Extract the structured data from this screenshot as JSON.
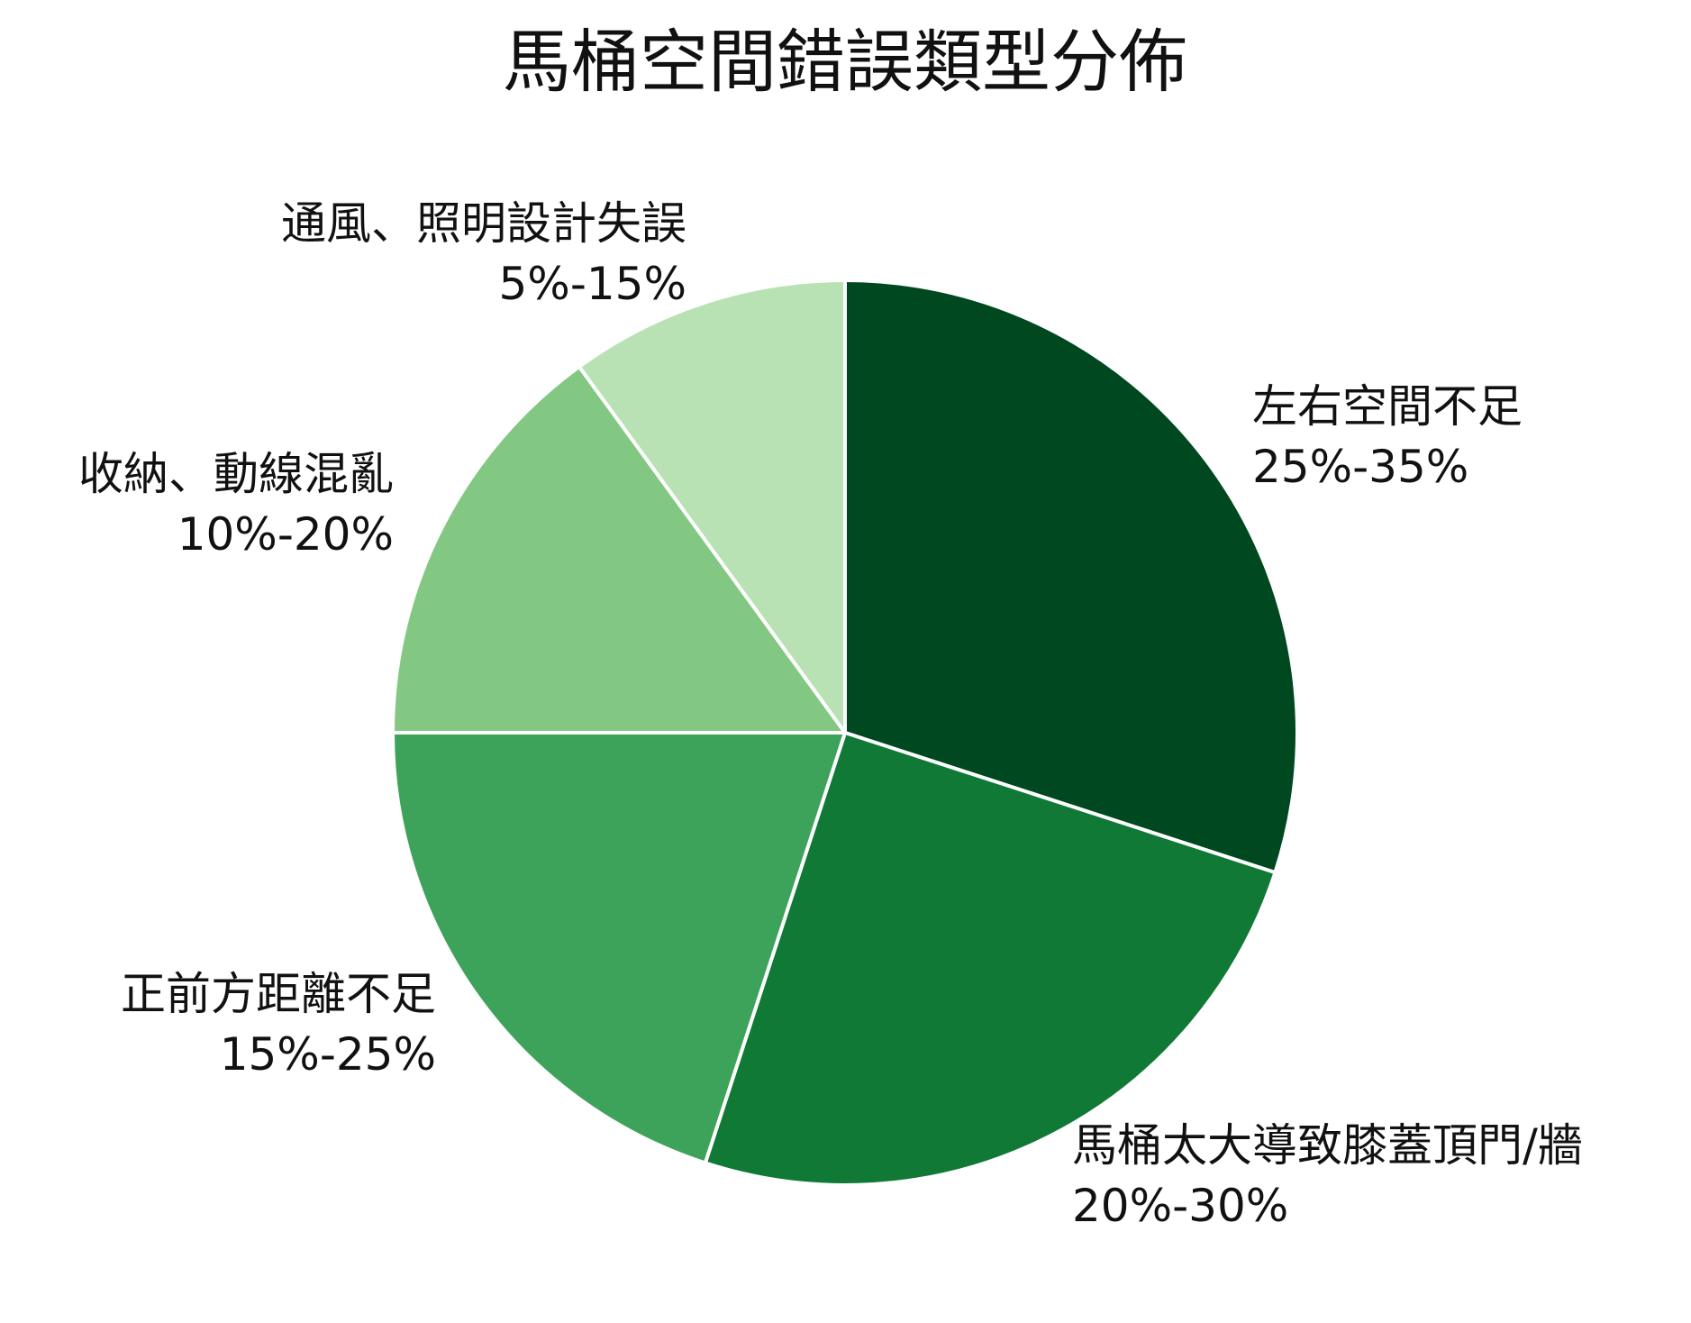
{
  "chart_data": {
    "type": "pie",
    "title": "馬桶空間錯誤類型分佈",
    "slices": [
      {
        "name": "左右空間不足",
        "range": "25%-35%",
        "value": 30,
        "color": "#00481f"
      },
      {
        "name": "馬桶太大導致膝蓋頂門/牆",
        "range": "20%-30%",
        "value": 25,
        "color": "#107936"
      },
      {
        "name": "正前方距離不足",
        "range": "15%-25%",
        "value": 20,
        "color": "#3ea35a"
      },
      {
        "name": "收納、動線混亂",
        "range": "10%-20%",
        "value": 15,
        "color": "#83c882"
      },
      {
        "name": "通風、照明設計失誤",
        "range": "5%-15%",
        "value": 10,
        "color": "#b8e2b3"
      }
    ],
    "start_angle": "12 o'clock",
    "direction": "clockwise",
    "slice_border_color": "#ffffff",
    "legend": "none"
  }
}
